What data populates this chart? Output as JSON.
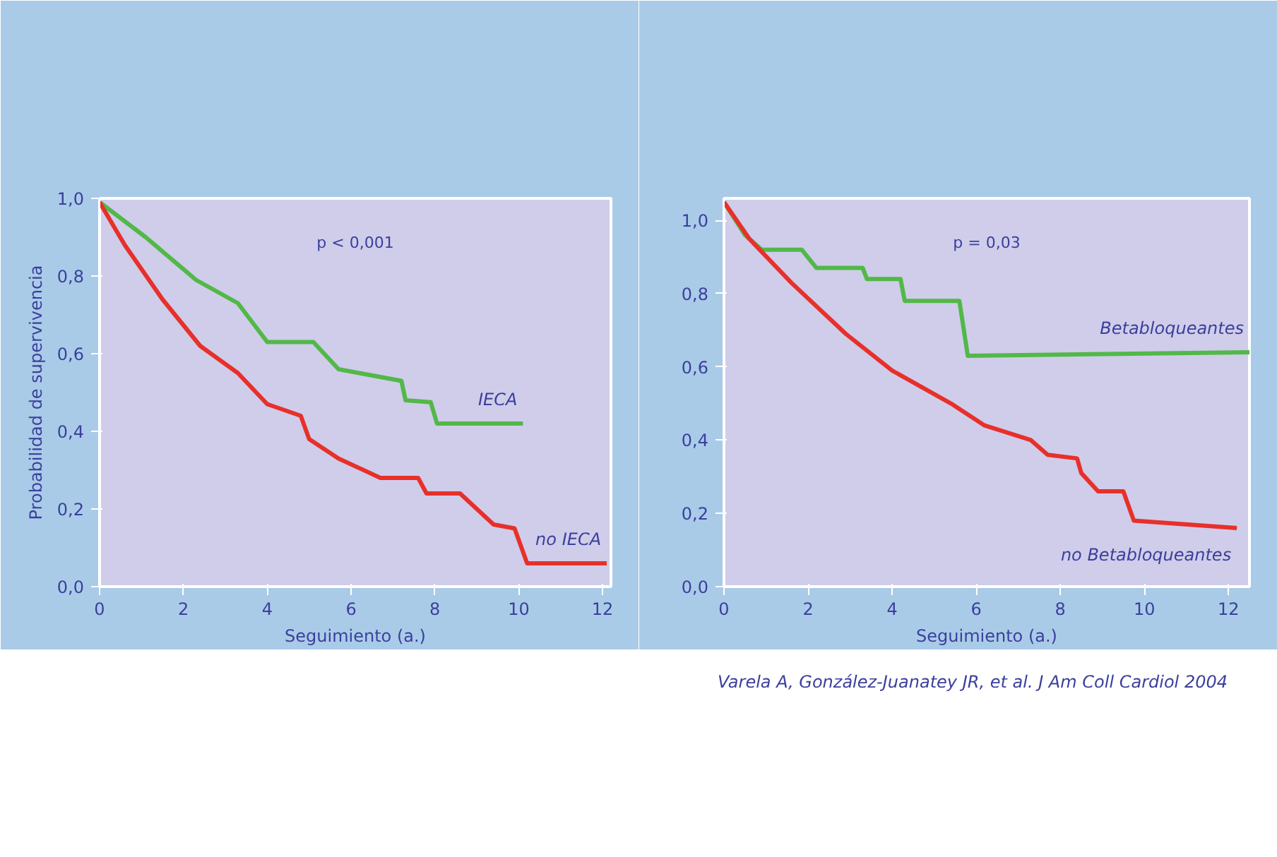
{
  "chart_data": [
    {
      "type": "line",
      "xlabel": "Seguimiento (a.)",
      "ylabel": "Probabilidad de supervivencia",
      "xlim": [
        0,
        12.2
      ],
      "ylim": [
        0,
        1.0
      ],
      "xticks": [
        0,
        2,
        4,
        6,
        8,
        10,
        12
      ],
      "yticks": [
        {
          "value": 0,
          "label": "0,0"
        },
        {
          "value": 0.2,
          "label": "0,2"
        },
        {
          "value": 0.4,
          "label": "0,4"
        },
        {
          "value": 0.6,
          "label": "0,6"
        },
        {
          "value": 0.8,
          "label": "0,8"
        },
        {
          "value": 1.0,
          "label": "1,0"
        }
      ],
      "grid": false,
      "annotations": [
        "p < 0,001"
      ],
      "series": [
        {
          "name": "IECA",
          "color": "#52b848",
          "x": [
            0,
            1.1,
            2.3,
            3.3,
            4.0,
            5.1,
            5.7,
            7.2,
            7.3,
            7.9,
            8.05,
            10.1
          ],
          "values": [
            0.99,
            0.9,
            0.79,
            0.73,
            0.63,
            0.63,
            0.56,
            0.53,
            0.48,
            0.475,
            0.42,
            0.42
          ]
        },
        {
          "name": "no IECA",
          "color": "#e8302a",
          "x": [
            0,
            0.6,
            1.5,
            2.4,
            3.3,
            4.0,
            4.8,
            5.0,
            5.7,
            6.7,
            7.6,
            7.8,
            8.6,
            9.0,
            9.4,
            9.9,
            10.2,
            12.1
          ],
          "values": [
            0.99,
            0.88,
            0.74,
            0.62,
            0.55,
            0.47,
            0.44,
            0.38,
            0.33,
            0.28,
            0.28,
            0.24,
            0.24,
            0.2,
            0.16,
            0.15,
            0.06,
            0.06
          ]
        }
      ]
    },
    {
      "type": "line",
      "xlabel": "Seguimiento (a.)",
      "xlim": [
        0,
        12.5
      ],
      "ylim": [
        0,
        1.06
      ],
      "xticks": [
        0,
        2,
        4,
        6,
        8,
        10,
        12
      ],
      "yticks": [
        {
          "value": 0,
          "label": "0,0"
        },
        {
          "value": 0.2,
          "label": "0,2"
        },
        {
          "value": 0.4,
          "label": "0,4"
        },
        {
          "value": 0.6,
          "label": "0,6"
        },
        {
          "value": 0.8,
          "label": "0,8"
        },
        {
          "value": 1.0,
          "label": "1,0"
        }
      ],
      "grid": false,
      "annotations": [
        "p = 0,03",
        "Varela A, González-Juanatey JR, et al. J Am Coll Cardiol 2004"
      ],
      "series": [
        {
          "name": "Betabloqueantes",
          "color": "#52b848",
          "x": [
            0,
            0.5,
            0.9,
            1.85,
            2.2,
            3.3,
            3.4,
            4.2,
            4.3,
            5.6,
            5.8,
            12.5
          ],
          "values": [
            1.05,
            0.96,
            0.92,
            0.92,
            0.87,
            0.87,
            0.84,
            0.84,
            0.78,
            0.78,
            0.63,
            0.64
          ]
        },
        {
          "name": "no Betabloqueantes",
          "color": "#e8302a",
          "x": [
            0,
            0.6,
            1.6,
            2.9,
            4.0,
            5.4,
            6.2,
            7.3,
            7.7,
            8.4,
            8.5,
            8.9,
            9.5,
            9.75,
            12.2
          ],
          "values": [
            1.05,
            0.95,
            0.83,
            0.69,
            0.59,
            0.5,
            0.44,
            0.4,
            0.36,
            0.35,
            0.31,
            0.26,
            0.26,
            0.18,
            0.16
          ]
        }
      ]
    }
  ]
}
